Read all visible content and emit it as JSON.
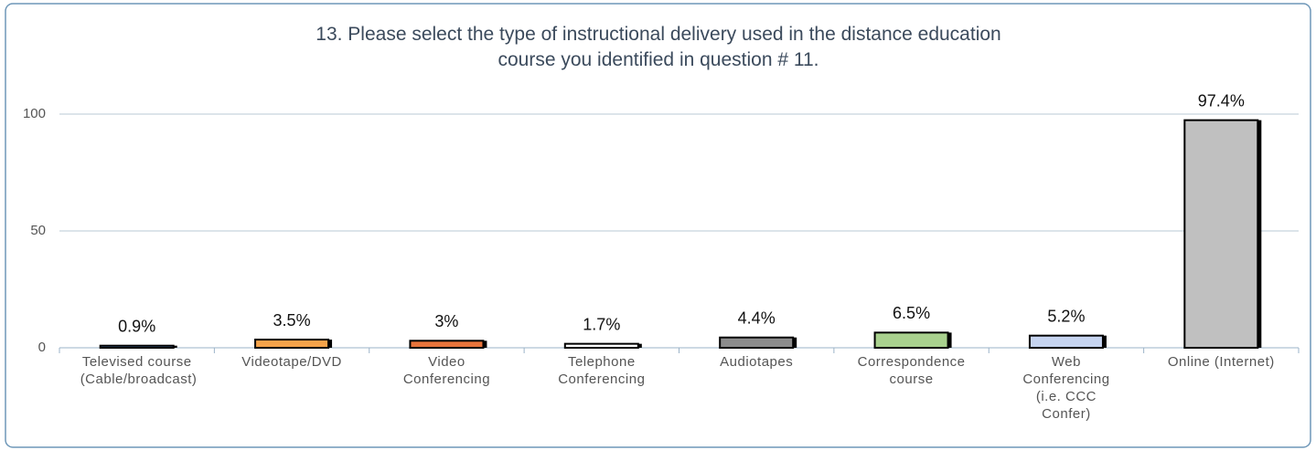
{
  "chart_data": {
    "type": "bar",
    "title": "13. Please select the type of instructional delivery used in the distance education course you identified in question # 11.",
    "categories": [
      "Televised course (Cable/broadcast)",
      "Videotape/DVD",
      "Video Conferencing",
      "Telephone Conferencing",
      "Audiotapes",
      "Correspondence course",
      "Web Conferencing (i.e. CCC Confer)",
      "Online (Internet)"
    ],
    "values": [
      0.9,
      3.5,
      3,
      1.7,
      4.4,
      6.5,
      5.2,
      97.4
    ],
    "value_labels": [
      "0.9%",
      "3.5%",
      "3%",
      "1.7%",
      "4.4%",
      "6.5%",
      "5.2%",
      "97.4%"
    ],
    "colors": [
      "#4f81bd",
      "#f5a34a",
      "#e8743b",
      "#ffffff",
      "#8c8c8c",
      "#a9d18e",
      "#c6d4f0",
      "#c0c0c0"
    ],
    "ylim": [
      0,
      100
    ],
    "yticks": [
      0,
      50,
      100
    ],
    "grid": true
  }
}
